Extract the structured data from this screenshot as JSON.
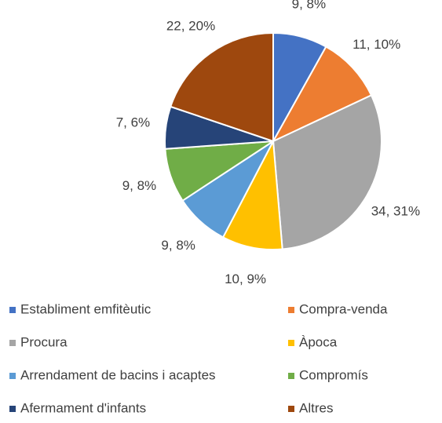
{
  "chart_data": {
    "type": "pie",
    "categories": [
      "Establiment emfitèutic",
      "Compra-venda",
      "Procura",
      "Àpoca",
      "Arrendament de bacins i acaptes",
      "Compromís",
      "Afermament d'infants",
      "Altres"
    ],
    "values": [
      9,
      11,
      34,
      10,
      9,
      9,
      7,
      22
    ],
    "value_labels": [
      "9, 8%",
      "11, 10%",
      "34, 31%",
      "10, 9%",
      "9, 8%",
      "9, 8%",
      "7, 6%",
      "22, 20%"
    ],
    "colors": [
      "#4472c4",
      "#ed7d31",
      "#a5a5a5",
      "#ffc000",
      "#5b9bd5",
      "#70ad47",
      "#264478",
      "#9e480e"
    ],
    "legend": "bottom"
  }
}
